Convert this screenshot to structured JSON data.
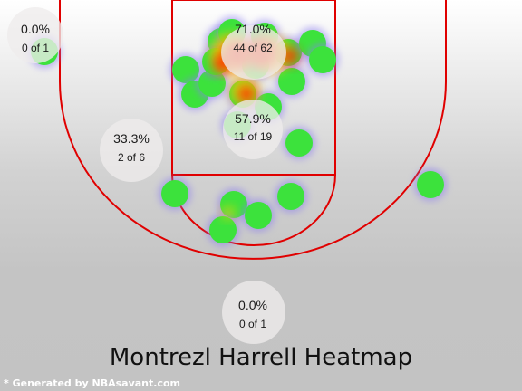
{
  "title": "Montrezl Harrell Heatmap",
  "credit": "* Generated by NBAsavant.com",
  "colors": {
    "court_line": "#e00000",
    "shot_fill": "#3ce23c",
    "shot_edge": "#8a7cf0",
    "heat_hot": "#ff2a00",
    "heat_warm": "#ffd000",
    "zone_bubble": "#eeecec"
  },
  "zones": [
    {
      "id": "left-corner",
      "pct": "0.0%",
      "count": "0 of 1"
    },
    {
      "id": "restricted-area",
      "pct": "71.0%",
      "count": "44 of 62"
    },
    {
      "id": "paint",
      "pct": "57.9%",
      "count": "11 of 19"
    },
    {
      "id": "left-midrange",
      "pct": "33.3%",
      "count": "2 of 6"
    },
    {
      "id": "backcourt",
      "pct": "0.0%",
      "count": "0 of 1"
    }
  ]
}
